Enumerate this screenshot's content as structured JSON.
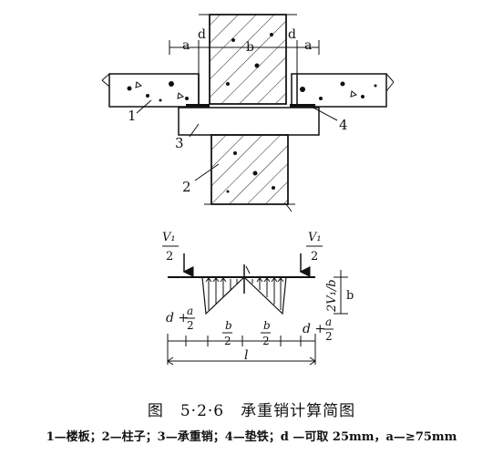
{
  "figure": {
    "caption": "图　5·2·6　承重销计算简图",
    "legend": "1—楼板；2—柱子；3—承重销；4—垫铁；d —可取 25mm，a—≥75mm"
  },
  "section": {
    "dim_labels": {
      "a": "a",
      "d": "d",
      "b": "b"
    },
    "callouts": [
      "1",
      "2",
      "3",
      "4"
    ]
  },
  "calc": {
    "load_num": "V₁",
    "load_den": "2",
    "end_term_prefix": "d +",
    "frac_a_num": "a",
    "frac_den": "2",
    "frac_b_num": "b",
    "b_label": "b",
    "span_label": "l",
    "side_load": "2V₁/b"
  }
}
